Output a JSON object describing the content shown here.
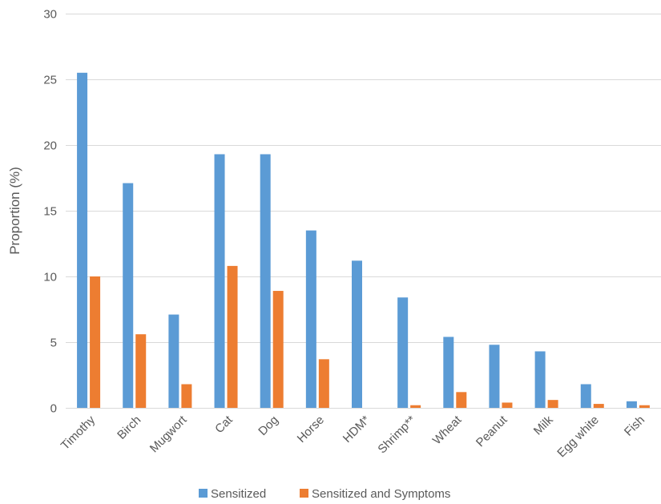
{
  "chart_data": {
    "type": "bar",
    "title": "",
    "xlabel": "",
    "ylabel": "Proportion (%)",
    "ylim": [
      0,
      30
    ],
    "yticks": [
      0,
      5,
      10,
      15,
      20,
      25,
      30
    ],
    "grid": true,
    "legend_position": "bottom",
    "categories": [
      "Timothy",
      "Birch",
      "Mugwort",
      "Cat",
      "Dog",
      "Horse",
      "HDM*",
      "Shrimp**",
      "Wheat",
      "Peanut",
      "Milk",
      "Egg white",
      "Fish"
    ],
    "series": [
      {
        "name": "Sensitized",
        "color": "#5b9bd5",
        "values": [
          25.5,
          17.1,
          7.1,
          19.3,
          19.3,
          13.5,
          11.2,
          8.4,
          5.4,
          4.8,
          4.3,
          1.8,
          0.5
        ]
      },
      {
        "name": "Sensitized and Symptoms",
        "color": "#ed7d31",
        "values": [
          10.0,
          5.6,
          1.8,
          10.8,
          8.9,
          3.7,
          0.0,
          0.2,
          1.2,
          0.4,
          0.6,
          0.3,
          0.2
        ]
      }
    ]
  }
}
